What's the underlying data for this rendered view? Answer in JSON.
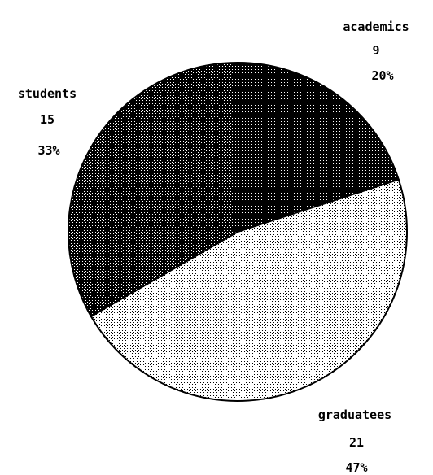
{
  "chart_data": {
    "type": "pie",
    "slices": [
      {
        "label": "academics",
        "value": 9,
        "percent": "20%",
        "pattern": "dense-dots"
      },
      {
        "label": "graduatees",
        "value": 21,
        "percent": "47%",
        "pattern": "sparse-dots"
      },
      {
        "label": "students",
        "value": 15,
        "percent": "33%",
        "pattern": "medium-dots"
      }
    ],
    "start_angle": "12 o'clock",
    "direction": "clockwise",
    "legend": "none",
    "colors": {
      "outline": "#000000",
      "background": "#ffffff"
    }
  }
}
